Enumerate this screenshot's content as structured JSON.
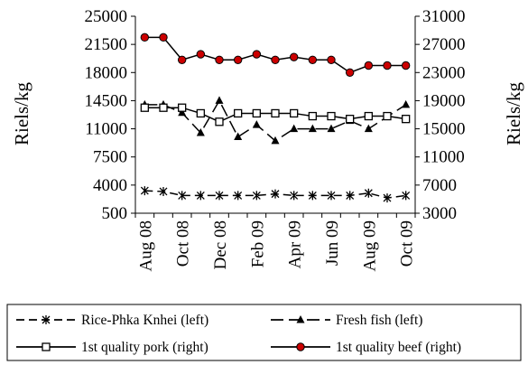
{
  "chart_data": {
    "type": "line",
    "categories": [
      "Aug 08",
      "Sep 08",
      "Oct 08",
      "Nov 08",
      "Dec 08",
      "Jan 09",
      "Feb 09",
      "Mar 09",
      "Apr 09",
      "May 09",
      "Jun 09",
      "Jul 09",
      "Aug 09",
      "Sep 09",
      "Oct 09"
    ],
    "x_tick_labels": [
      "Aug 08",
      "Oct 08",
      "Dec 08",
      "Feb 09",
      "Apr 09",
      "Jun 09",
      "Aug 09",
      "Oct 09"
    ],
    "ylabel": "Riels/kg",
    "ylabel_right": "Riels/kg",
    "y_ticks_left": [
      "25000",
      "21500",
      "18000",
      "14500",
      "11000",
      "7500",
      "4000",
      "500"
    ],
    "y_ticks_right": [
      "31000",
      "27000",
      "23000",
      "19000",
      "15000",
      "11000",
      "7000",
      "3000"
    ],
    "ylim_left": [
      500,
      25000
    ],
    "ylim_right": [
      3000,
      31000
    ],
    "grid": false,
    "legend_position": "bottom",
    "series": [
      {
        "name": "Rice-Phka Knhei (left)",
        "axis": "left",
        "color": "#000000",
        "marker": "star",
        "dash": "dash",
        "values": [
          3300,
          3200,
          2700,
          2700,
          2700,
          2700,
          2700,
          2900,
          2700,
          2700,
          2700,
          2700,
          3000,
          2400,
          2700
        ]
      },
      {
        "name": "Fresh fish (left)",
        "axis": "left",
        "color": "#000000",
        "marker": "triangle",
        "dash": "longdash",
        "values": [
          14000,
          14000,
          13000,
          10500,
          14500,
          10000,
          11500,
          9500,
          11000,
          11000,
          11000,
          12000,
          11000,
          12500,
          14000
        ]
      },
      {
        "name": "1st quality pork (right)",
        "axis": "right",
        "color": "#000000",
        "marker": "square",
        "dash": "solid",
        "values": [
          18000,
          18000,
          18000,
          17200,
          16000,
          17200,
          17200,
          17200,
          17200,
          16800,
          16800,
          16400,
          16800,
          16800,
          16400
        ]
      },
      {
        "name": "1st quality beef (right)",
        "axis": "right",
        "color": "#cc0000",
        "marker": "circle",
        "dash": "solid",
        "values": [
          28000,
          28000,
          24800,
          25600,
          24800,
          24800,
          25600,
          24800,
          25200,
          24800,
          24800,
          23000,
          24000,
          24000,
          24000
        ]
      }
    ]
  }
}
